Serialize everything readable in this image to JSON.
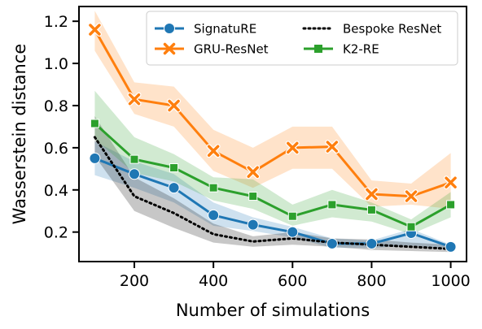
{
  "chart_data": {
    "type": "line",
    "xlabel": "Number of simulations",
    "ylabel": "Wasserstein distance",
    "xlim": [
      60,
      1040
    ],
    "ylim": [
      0.06,
      1.27
    ],
    "x_ticks": [
      200,
      400,
      600,
      800,
      1000
    ],
    "y_ticks": [
      0.2,
      0.4,
      0.6,
      0.8,
      1.0,
      1.2
    ],
    "x_tick_labels": [
      "200",
      "400",
      "600",
      "800",
      "1000"
    ],
    "y_tick_labels": [
      "0.2",
      "0.4",
      "0.6",
      "0.8",
      "1.0",
      "1.2"
    ],
    "grid": false,
    "legend_position": "top-right",
    "x": [
      100,
      200,
      300,
      400,
      500,
      600,
      700,
      800,
      900,
      1000
    ],
    "series": [
      {
        "name": "SignatuRE",
        "color": "#1f77b4",
        "marker": "circle",
        "line_style": "solid",
        "values": [
          0.55,
          0.475,
          0.41,
          0.28,
          0.235,
          0.2,
          0.145,
          0.145,
          0.195,
          0.13
        ],
        "lower": [
          0.47,
          0.41,
          0.34,
          0.23,
          0.205,
          0.175,
          0.125,
          0.125,
          0.135,
          0.12
        ],
        "upper": [
          0.63,
          0.535,
          0.475,
          0.34,
          0.27,
          0.225,
          0.17,
          0.16,
          0.215,
          0.14
        ]
      },
      {
        "name": "GRU-ResNet",
        "color": "#ff7f0e",
        "marker": "x",
        "line_style": "solid",
        "values": [
          1.16,
          0.83,
          0.8,
          0.585,
          0.485,
          0.6,
          0.605,
          0.38,
          0.37,
          0.435
        ],
        "lower": [
          1.06,
          0.76,
          0.7,
          0.49,
          0.41,
          0.5,
          0.5,
          0.32,
          0.33,
          0.31
        ],
        "upper": [
          1.25,
          0.91,
          0.89,
          0.685,
          0.6,
          0.7,
          0.7,
          0.445,
          0.43,
          0.575
        ]
      },
      {
        "name": "Bespoke ResNet",
        "color": "#000000",
        "marker": "none",
        "line_style": "dotted",
        "values": [
          0.65,
          0.37,
          0.29,
          0.19,
          0.155,
          0.17,
          0.15,
          0.14,
          0.13,
          0.12
        ],
        "lower": [
          0.56,
          0.3,
          0.22,
          0.15,
          0.13,
          0.14,
          0.13,
          0.115,
          0.11,
          0.105
        ],
        "upper": [
          0.75,
          0.46,
          0.36,
          0.24,
          0.18,
          0.2,
          0.17,
          0.165,
          0.15,
          0.14
        ]
      },
      {
        "name": "K2-RE",
        "color": "#2ca02c",
        "marker": "square",
        "line_style": "solid",
        "values": [
          0.715,
          0.545,
          0.505,
          0.41,
          0.37,
          0.275,
          0.33,
          0.305,
          0.225,
          0.33
        ],
        "lower": [
          0.64,
          0.48,
          0.44,
          0.35,
          0.31,
          0.23,
          0.27,
          0.25,
          0.19,
          0.27
        ],
        "upper": [
          0.87,
          0.65,
          0.57,
          0.46,
          0.45,
          0.33,
          0.4,
          0.34,
          0.26,
          0.39
        ]
      }
    ]
  }
}
